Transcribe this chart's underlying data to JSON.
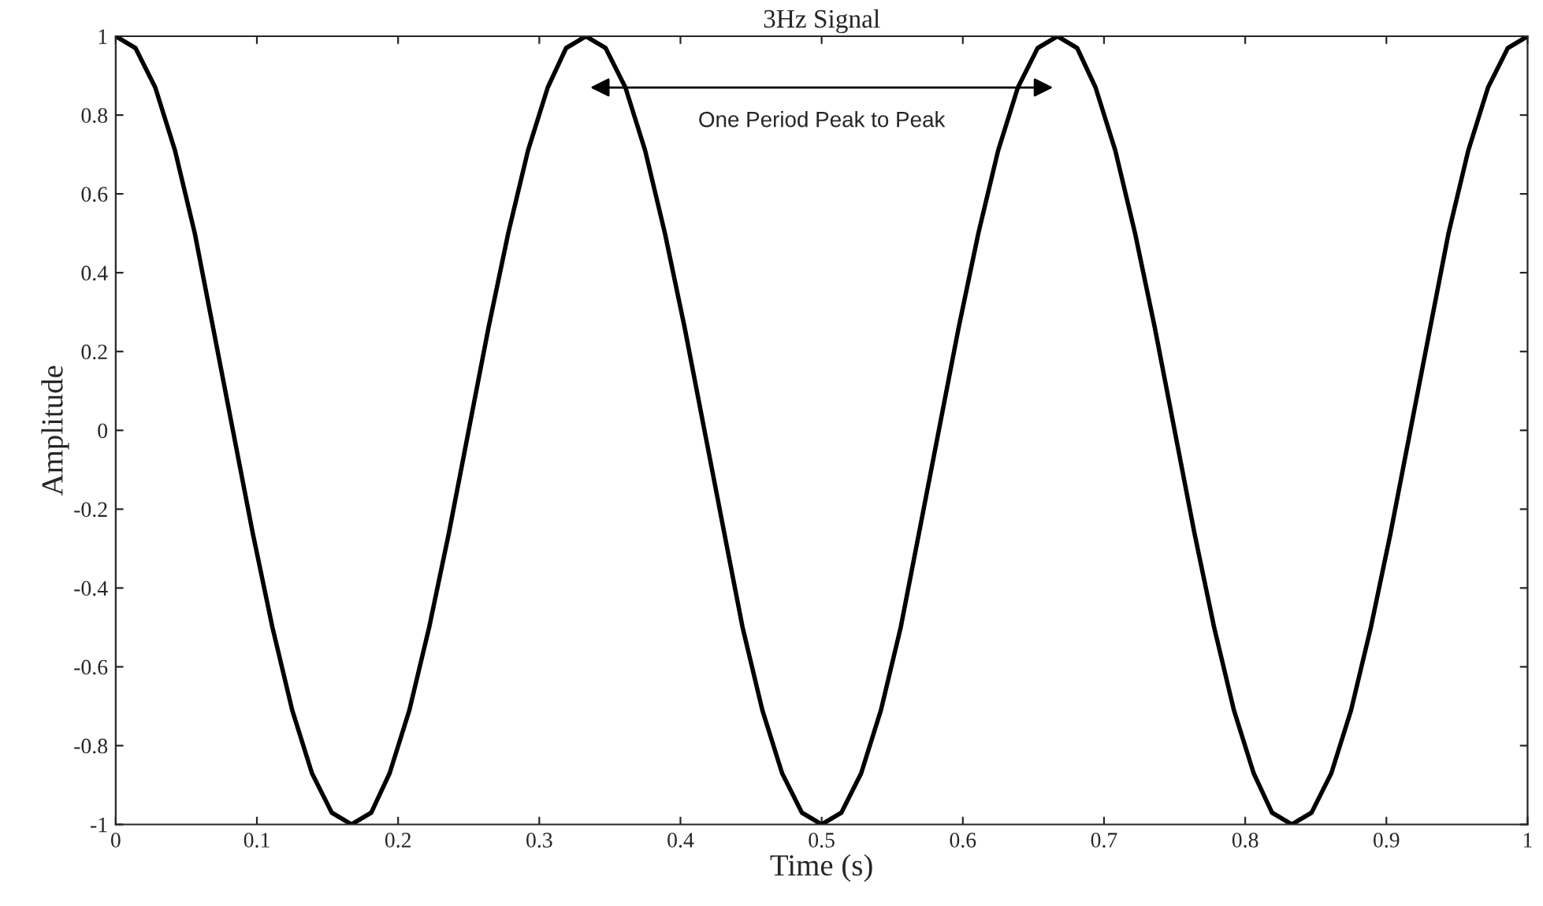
{
  "chart_data": {
    "type": "line",
    "title": "3Hz Signal",
    "xlabel": "Time (s)",
    "ylabel": "Amplitude",
    "x": [
      0,
      0.014,
      0.028,
      0.042,
      0.056,
      0.069,
      0.083,
      0.097,
      0.111,
      0.125,
      0.139,
      0.153,
      0.167,
      0.181,
      0.194,
      0.208,
      0.222,
      0.236,
      0.25,
      0.264,
      0.278,
      0.292,
      0.306,
      0.319,
      0.333,
      0.347,
      0.361,
      0.375,
      0.389,
      0.403,
      0.417,
      0.431,
      0.444,
      0.458,
      0.472,
      0.486,
      0.5,
      0.514,
      0.528,
      0.542,
      0.556,
      0.569,
      0.583,
      0.597,
      0.611,
      0.625,
      0.639,
      0.653,
      0.667,
      0.681,
      0.694,
      0.708,
      0.722,
      0.736,
      0.75,
      0.764,
      0.778,
      0.792,
      0.806,
      0.819,
      0.833,
      0.847,
      0.861,
      0.875,
      0.889,
      0.903,
      0.917,
      0.931,
      0.944,
      0.958,
      0.972,
      0.986,
      1
    ],
    "series": [
      {
        "color": "#000000",
        "values": [
          1,
          0.97,
          0.87,
          0.71,
          0.5,
          0.26,
          0,
          -0.26,
          -0.5,
          -0.71,
          -0.87,
          -0.97,
          -1,
          -0.97,
          -0.87,
          -0.71,
          -0.5,
          -0.26,
          0,
          0.26,
          0.5,
          0.71,
          0.87,
          0.97,
          1,
          0.97,
          0.87,
          0.71,
          0.5,
          0.26,
          0,
          -0.26,
          -0.5,
          -0.71,
          -0.87,
          -0.97,
          -1,
          -0.97,
          -0.87,
          -0.71,
          -0.5,
          -0.26,
          0,
          0.26,
          0.5,
          0.71,
          0.87,
          0.97,
          1,
          0.97,
          0.87,
          0.71,
          0.5,
          0.26,
          0,
          -0.26,
          -0.5,
          -0.71,
          -0.87,
          -0.97,
          -1,
          -0.97,
          -0.87,
          -0.71,
          -0.5,
          -0.26,
          0,
          0.26,
          0.5,
          0.71,
          0.87,
          0.97,
          1
        ]
      }
    ],
    "xlim": [
      0,
      1
    ],
    "ylim": [
      -1,
      1
    ],
    "xticks": [
      0,
      0.1,
      0.2,
      0.3,
      0.4,
      0.5,
      0.6,
      0.7,
      0.8,
      0.9,
      1
    ],
    "yticks": [
      -1,
      -0.8,
      -0.6,
      -0.4,
      -0.2,
      0,
      0.2,
      0.4,
      0.6,
      0.8,
      1
    ],
    "annotations": [
      "One Period Peak to Peak"
    ],
    "grid": false,
    "legend": false,
    "marker": "none",
    "line_style": "solid"
  }
}
